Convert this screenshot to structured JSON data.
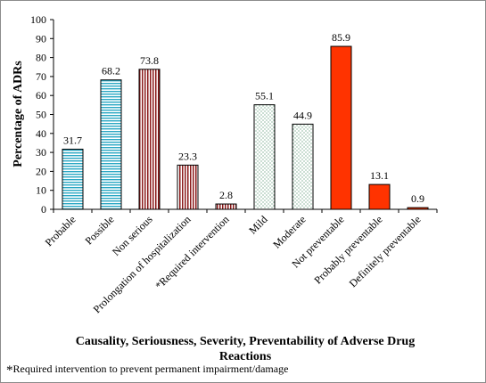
{
  "chart_data": {
    "type": "bar",
    "categories": [
      "Probable",
      "Possible",
      "Non serious",
      "Prolongation of hospitalization",
      "*Required intervention",
      "Mild",
      "Moderate",
      "Not preventable",
      "Probably preventable",
      "Definitely preventable"
    ],
    "values": [
      31.7,
      68.2,
      73.8,
      23.3,
      2.8,
      55.1,
      44.9,
      85.9,
      13.1,
      0.9
    ],
    "value_labels": [
      "31.7",
      "68.2",
      "73.8",
      "23.3",
      "2.8",
      "55.1",
      "44.9",
      "85.9",
      "13.1",
      "0.9"
    ],
    "groups": [
      {
        "name": "Causality",
        "pattern": "horizontal-lines",
        "color": "#2aa8c4",
        "indices": [
          0,
          1
        ]
      },
      {
        "name": "Seriousness",
        "pattern": "vertical-lines",
        "color": "#8b1a1a",
        "indices": [
          2,
          3,
          4
        ]
      },
      {
        "name": "Severity",
        "pattern": "dots",
        "color": "#2e7d4f",
        "indices": [
          5,
          6
        ]
      },
      {
        "name": "Preventability",
        "pattern": "solid",
        "color": "#ff3300",
        "indices": [
          7,
          8,
          9
        ]
      }
    ],
    "ylabel": "Percentage of ADRs",
    "xlabel": "Causality, Seriousness, Severity, Preventability of Adverse Drug Reactions",
    "ylim": [
      0,
      100
    ],
    "yticks": [
      "0",
      "10",
      "20",
      "30",
      "40",
      "50",
      "60",
      "70",
      "80",
      "90",
      "100"
    ],
    "grid": false
  },
  "footnote": {
    "marker": "*",
    "text": "Required intervention to prevent permanent impairment/damage"
  }
}
